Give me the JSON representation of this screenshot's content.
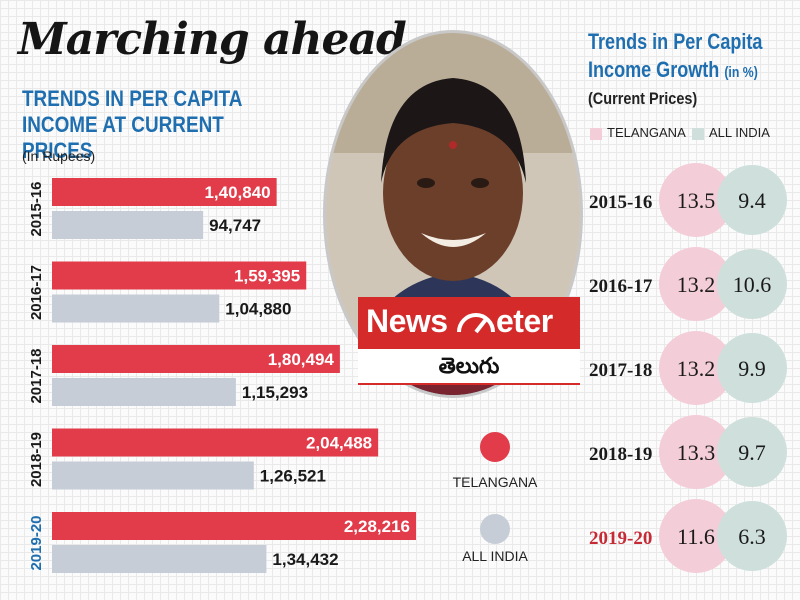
{
  "headline": "Marching ahead",
  "left_chart": {
    "subtitle_line1": "TRENDS IN PER CAPITA",
    "subtitle_line2": "INCOME AT CURRENT PRICES",
    "unit": "(In Rupees)"
  },
  "branding": {
    "name_part1": "News",
    "name_part2": "eter",
    "language": "తెలుగు"
  },
  "right_chart": {
    "title_line1": "Trends in Per Capita",
    "title_line2": "Income Growth",
    "title_unit": "(in %)",
    "subtitle": "(Current Prices)",
    "legend": [
      "TELANGANA",
      "ALL INDIA"
    ]
  },
  "colors": {
    "telangana_bar": "#e23b4a",
    "allindia_bar": "#c6cdd6",
    "telangana_circle": "#f3cdd8",
    "allindia_circle": "#cfe0dc",
    "title_blue": "#1f6fb0",
    "highlight_red": "#c62a35"
  },
  "chart_data": [
    {
      "type": "bar",
      "orientation": "horizontal",
      "title": "TRENDS IN PER CAPITA INCOME AT CURRENT PRICES",
      "unit": "(In Rupees)",
      "categories": [
        "2015-16",
        "2016-17",
        "2017-18",
        "2018-19",
        "2019-20"
      ],
      "series": [
        {
          "name": "TELANGANA",
          "values": [
            140840,
            159395,
            180494,
            204488,
            228216
          ],
          "labels": [
            "1,40,840",
            "1,59,395",
            "1,80,494",
            "2,04,488",
            "2,28,216"
          ]
        },
        {
          "name": "ALL INDIA",
          "values": [
            94747,
            104880,
            115293,
            126521,
            134432
          ],
          "labels": [
            "94,747",
            "1,04,880",
            "1,15,293",
            "1,26,521",
            "1,34,432"
          ]
        }
      ],
      "legend": [
        "TELANGANA",
        "ALL INDIA"
      ],
      "highlighted_category": "2019-20"
    },
    {
      "type": "table",
      "title": "Trends in Per Capita Income Growth (in %)",
      "subtitle": "(Current Prices)",
      "categories": [
        "2015-16",
        "2016-17",
        "2017-18",
        "2018-19",
        "2019-20"
      ],
      "series": [
        {
          "name": "TELANGANA",
          "values": [
            13.5,
            13.2,
            13.2,
            13.3,
            11.6
          ]
        },
        {
          "name": "ALL INDIA",
          "values": [
            9.4,
            10.6,
            9.9,
            9.7,
            6.3
          ]
        }
      ],
      "highlighted_category": "2019-20"
    }
  ]
}
